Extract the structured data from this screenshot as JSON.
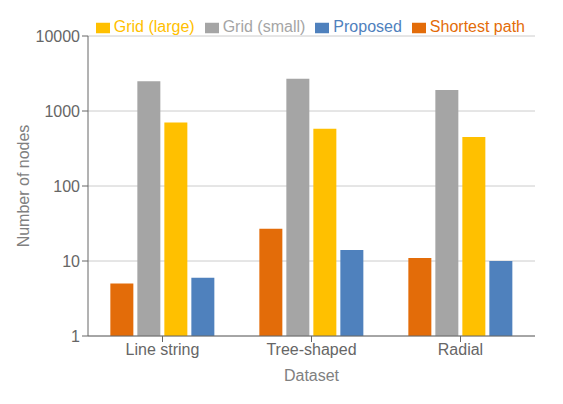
{
  "chart_data": {
    "type": "bar",
    "categories": [
      "Line string",
      "Tree-shaped",
      "Radial"
    ],
    "series": [
      {
        "name": "Shortest path",
        "color": "#E36C09",
        "values": [
          5,
          27,
          11
        ]
      },
      {
        "name": "Grid (small)",
        "color": "#A5A5A5",
        "values": [
          2500,
          2700,
          1900
        ]
      },
      {
        "name": "Grid (large)",
        "color": "#FFC000",
        "values": [
          700,
          580,
          450
        ]
      },
      {
        "name": "Proposed",
        "color": "#4F81BD",
        "values": [
          6,
          14,
          10
        ]
      }
    ],
    "xlabel": "Dataset",
    "ylabel": "Number of nodes",
    "ylim": [
      1,
      10000
    ],
    "yticks": [
      1,
      10,
      100,
      1000,
      10000
    ],
    "log": "y",
    "grid": true,
    "legend": "upper right"
  }
}
